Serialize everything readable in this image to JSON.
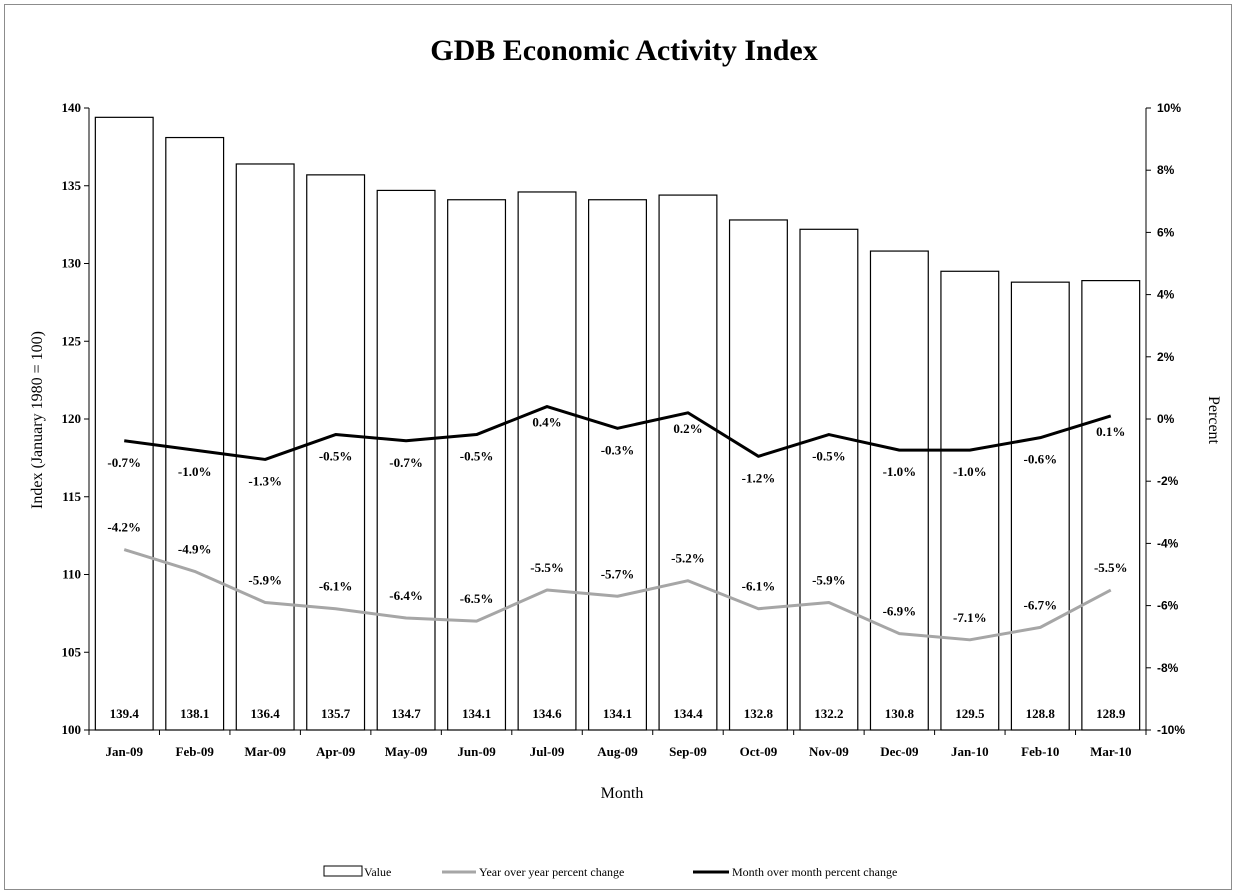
{
  "chart_data": {
    "type": "bar",
    "title": "GDB Economic Activity Index",
    "xlabel": "Month",
    "ylabel": "Index  (January 1980 = 100)",
    "y2label": "Percent",
    "ylim": [
      100,
      140
    ],
    "y_ticks": [
      "100",
      "105",
      "110",
      "115",
      "120",
      "125",
      "130",
      "135",
      "140"
    ],
    "y2lim": [
      -10,
      10
    ],
    "y2_ticks": [
      "-10%",
      "-8%",
      "-6%",
      "-4%",
      "-2%",
      "0%",
      "2%",
      "4%",
      "6%",
      "8%",
      "10%"
    ],
    "grid": false,
    "legend_position": "bottom",
    "categories": [
      "Jan-09",
      "Feb-09",
      "Mar-09",
      "Apr-09",
      "May-09",
      "Jun-09",
      "Jul-09",
      "Aug-09",
      "Sep-09",
      "Oct-09",
      "Nov-09",
      "Dec-09",
      "Jan-10",
      "Feb-10",
      "Mar-10"
    ],
    "series": [
      {
        "name": "Value",
        "kind": "bar",
        "axis": "left",
        "color": "#ffffff",
        "values": [
          139.4,
          138.1,
          136.4,
          135.7,
          134.7,
          134.1,
          134.6,
          134.1,
          134.4,
          132.8,
          132.2,
          130.8,
          129.5,
          128.8,
          128.9
        ],
        "labels": [
          "139.4",
          "138.1",
          "136.4",
          "135.7",
          "134.7",
          "134.1",
          "134.6",
          "134.1",
          "134.4",
          "132.8",
          "132.2",
          "130.8",
          "129.5",
          "128.8",
          "128.9"
        ]
      },
      {
        "name": "Year over year percent change",
        "kind": "line",
        "axis": "right",
        "color": "#a6a6a6",
        "values": [
          -4.2,
          -4.9,
          -5.9,
          -6.1,
          -6.4,
          -6.5,
          -5.5,
          -5.7,
          -5.2,
          -6.1,
          -5.9,
          -6.9,
          -7.1,
          -6.7,
          -5.5
        ],
        "labels": [
          "-4.2%",
          "-4.9%",
          "-5.9%",
          "-6.1%",
          "-6.4%",
          "-6.5%",
          "-5.5%",
          "-5.7%",
          "-5.2%",
          "-6.1%",
          "-5.9%",
          "-6.9%",
          "-7.1%",
          "-6.7%",
          "-5.5%"
        ]
      },
      {
        "name": "Month over month percent change",
        "kind": "line",
        "axis": "right",
        "color": "#000000",
        "values": [
          -0.7,
          -1.0,
          -1.3,
          -0.5,
          -0.7,
          -0.5,
          0.4,
          -0.3,
          0.2,
          -1.2,
          -0.5,
          -1.0,
          -1.0,
          -0.6,
          0.1
        ],
        "labels": [
          "-0.7%",
          "-1.0%",
          "-1.3%",
          "-0.5%",
          "-0.7%",
          "-0.5%",
          "0.4%",
          "-0.3%",
          "0.2%",
          "-1.2%",
          "-0.5%",
          "-1.0%",
          "-1.0%",
          "-0.6%",
          "0.1%"
        ]
      }
    ]
  }
}
